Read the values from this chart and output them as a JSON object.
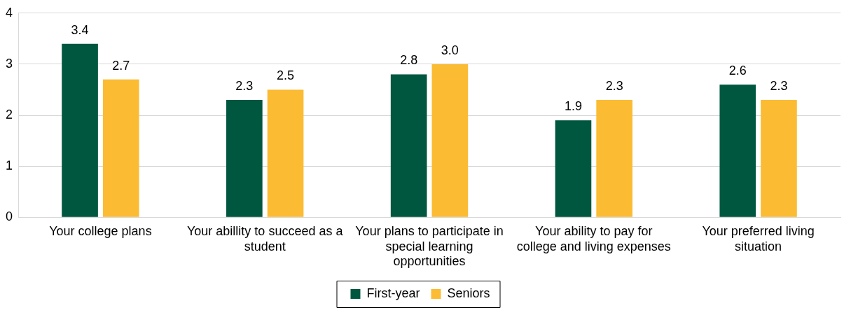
{
  "chart_data": {
    "type": "bar",
    "categories": [
      "Your college plans",
      "Your abillity to succeed as a student",
      "Your plans to participate in special learning opportunities",
      "Your ability to pay for college and living expenses",
      "Your preferred living situation"
    ],
    "series": [
      {
        "name": "First-year",
        "color": "#00573f",
        "values": [
          3.4,
          2.3,
          2.8,
          1.9,
          2.6
        ],
        "value_labels": [
          "3.4",
          "2.3",
          "2.8",
          "1.9",
          "2.6"
        ]
      },
      {
        "name": "Seniors",
        "color": "#fbbc33",
        "values": [
          2.7,
          2.5,
          3.0,
          2.3,
          2.3
        ],
        "value_labels": [
          "2.7",
          "2.5",
          "3.0",
          "2.3",
          "2.3"
        ]
      }
    ],
    "ylim": [
      0,
      4
    ],
    "yticks": [
      0,
      1,
      2,
      3,
      4
    ],
    "grid": "y",
    "legend": "bottom"
  }
}
